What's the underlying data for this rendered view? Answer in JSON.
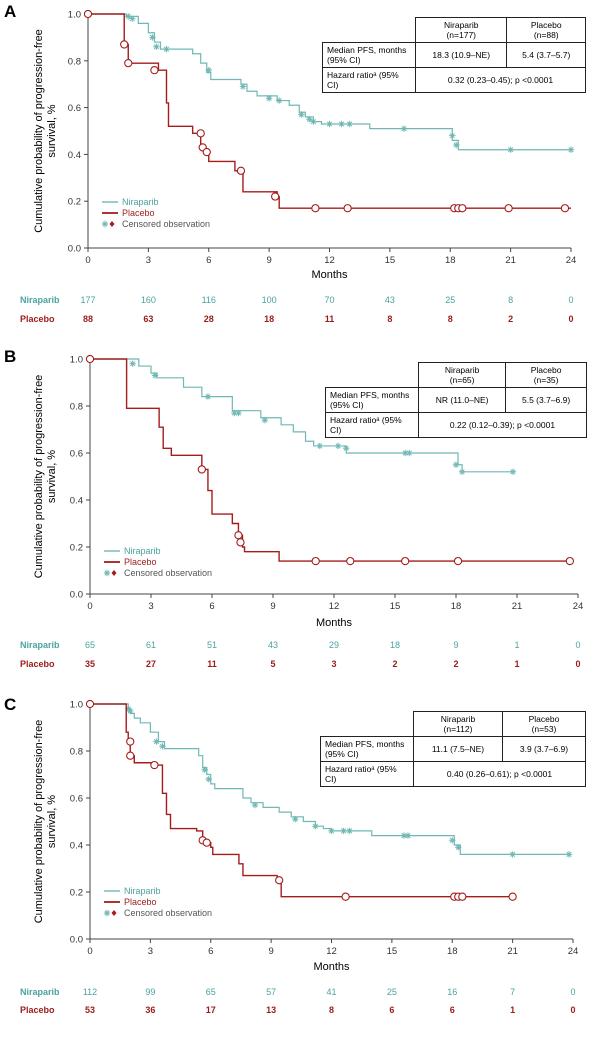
{
  "chart_data": [
    {
      "panel": "A",
      "type": "line",
      "ylabel": "Cumulative probability of progression-free survival, %",
      "xlabel": "Months",
      "xticks": [
        0,
        3,
        6,
        9,
        12,
        15,
        18,
        21,
        24
      ],
      "yticks": [
        "0.0",
        "0.2",
        "0.4",
        "0.6",
        "0.8",
        "1.0"
      ],
      "xlim": [
        0,
        24
      ],
      "ylim": [
        0,
        1
      ],
      "legend": {
        "niraparib": "Niraparib",
        "placebo": "Placebo",
        "censored": "Censored observation"
      },
      "legend_placement": "bottom-left",
      "table": {
        "col1": "Niraparib",
        "col1_n": "(n=177)",
        "col2": "Placebo",
        "col2_n": "(n=88)",
        "row1_label": "Median PFS, months (95% CI)",
        "row1_v1": "18.3 (10.9–NE)",
        "row1_v2": "5.4 (3.7–5.7)",
        "row2_label": "Hazard ratioᵃ (95% CI)",
        "row2_value": "0.32 (0.23–0.45); p <0.0001"
      },
      "series": [
        {
          "name": "Niraparib",
          "steps": [
            [
              0,
              1.0
            ],
            [
              1.9,
              0.99
            ],
            [
              2.5,
              0.96
            ],
            [
              3.0,
              0.92
            ],
            [
              3.3,
              0.88
            ],
            [
              3.6,
              0.85
            ],
            [
              5.2,
              0.83
            ],
            [
              5.6,
              0.79
            ],
            [
              5.9,
              0.75
            ],
            [
              6.1,
              0.72
            ],
            [
              7.6,
              0.7
            ],
            [
              7.9,
              0.67
            ],
            [
              8.4,
              0.65
            ],
            [
              9.4,
              0.63
            ],
            [
              10.0,
              0.61
            ],
            [
              10.5,
              0.58
            ],
            [
              10.8,
              0.56
            ],
            [
              11.2,
              0.54
            ],
            [
              11.6,
              0.53
            ],
            [
              14.0,
              0.51
            ],
            [
              18.1,
              0.46
            ],
            [
              18.4,
              0.42
            ]
          ],
          "end": 24,
          "censored": [
            [
              2.0,
              0.99
            ],
            [
              2.2,
              0.98
            ],
            [
              3.2,
              0.9
            ],
            [
              3.4,
              0.86
            ],
            [
              3.9,
              0.85
            ],
            [
              6.0,
              0.76
            ],
            [
              7.7,
              0.69
            ],
            [
              9.0,
              0.64
            ],
            [
              9.5,
              0.63
            ],
            [
              10.6,
              0.57
            ],
            [
              11.0,
              0.55
            ],
            [
              11.2,
              0.54
            ],
            [
              12.0,
              0.53
            ],
            [
              12.6,
              0.53
            ],
            [
              13.0,
              0.53
            ],
            [
              15.7,
              0.51
            ],
            [
              18.1,
              0.48
            ],
            [
              18.3,
              0.44
            ],
            [
              21.0,
              0.42
            ],
            [
              24.0,
              0.42
            ]
          ]
        },
        {
          "name": "Placebo",
          "steps": [
            [
              0,
              1.0
            ],
            [
              1.8,
              0.87
            ],
            [
              2.0,
              0.79
            ],
            [
              3.5,
              0.76
            ],
            [
              3.9,
              0.62
            ],
            [
              4.0,
              0.52
            ],
            [
              5.2,
              0.49
            ],
            [
              5.6,
              0.44
            ],
            [
              5.8,
              0.42
            ],
            [
              5.9,
              0.4
            ],
            [
              6.0,
              0.37
            ],
            [
              7.3,
              0.33
            ],
            [
              7.7,
              0.24
            ],
            [
              9.4,
              0.22
            ],
            [
              9.5,
              0.17
            ]
          ],
          "end": 24,
          "censored": [
            [
              0,
              1.0
            ],
            [
              1.8,
              0.87
            ],
            [
              2.0,
              0.79
            ],
            [
              3.3,
              0.76
            ],
            [
              5.6,
              0.49
            ],
            [
              5.7,
              0.43
            ],
            [
              5.9,
              0.41
            ],
            [
              7.6,
              0.33
            ],
            [
              9.3,
              0.22
            ],
            [
              11.3,
              0.17
            ],
            [
              12.9,
              0.17
            ],
            [
              18.2,
              0.17
            ],
            [
              18.4,
              0.17
            ],
            [
              18.6,
              0.17
            ],
            [
              20.9,
              0.17
            ],
            [
              23.7,
              0.17
            ]
          ]
        }
      ],
      "at_risk": {
        "niraparib_label": "Niraparib",
        "placebo_label": "Placebo",
        "niraparib": [
          "177",
          "160",
          "116",
          "100",
          "70",
          "43",
          "25",
          "8",
          "0"
        ],
        "placebo": [
          "88",
          "63",
          "28",
          "18",
          "11",
          "8",
          "8",
          "2",
          "0"
        ]
      }
    },
    {
      "panel": "B",
      "type": "line",
      "ylabel": "Cumulative probability of progression-free survival, %",
      "xlabel": "Months",
      "xticks": [
        0,
        3,
        6,
        9,
        12,
        15,
        18,
        21,
        24
      ],
      "yticks": [
        "0.0",
        "0.2",
        "0.4",
        "0.6",
        "0.8",
        "1.0"
      ],
      "xlim": [
        0,
        24
      ],
      "ylim": [
        0,
        1
      ],
      "legend": {
        "niraparib": "Niraparib",
        "placebo": "Placebo",
        "censored": "Censored observation"
      },
      "legend_placement": "bottom-left",
      "table": {
        "col1": "Niraparib",
        "col1_n": "(n=65)",
        "col2": "Placebo",
        "col2_n": "(n=35)",
        "row1_label": "Median PFS, months (95% CI)",
        "row1_v1": "NR (11.0–NE)",
        "row1_v2": "5.5 (3.7–6.9)",
        "row2_label": "Hazard ratioᵃ (95% CI)",
        "row2_value": "0.22 (0.12–0.39); p <0.0001"
      },
      "series": [
        {
          "name": "Niraparib",
          "steps": [
            [
              0,
              1.0
            ],
            [
              2.4,
              0.97
            ],
            [
              3.0,
              0.94
            ],
            [
              3.3,
              0.92
            ],
            [
              4.6,
              0.88
            ],
            [
              5.5,
              0.84
            ],
            [
              7.0,
              0.78
            ],
            [
              8.4,
              0.75
            ],
            [
              9.4,
              0.72
            ],
            [
              10.0,
              0.69
            ],
            [
              10.6,
              0.65
            ],
            [
              11.0,
              0.63
            ],
            [
              12.6,
              0.6
            ],
            [
              18.1,
              0.55
            ],
            [
              18.3,
              0.52
            ]
          ],
          "end": 20.8,
          "censored": [
            [
              2.1,
              0.98
            ],
            [
              3.2,
              0.93
            ],
            [
              5.8,
              0.84
            ],
            [
              7.1,
              0.77
            ],
            [
              7.3,
              0.77
            ],
            [
              8.6,
              0.74
            ],
            [
              11.3,
              0.63
            ],
            [
              12.2,
              0.63
            ],
            [
              12.6,
              0.62
            ],
            [
              15.5,
              0.6
            ],
            [
              15.7,
              0.6
            ],
            [
              18.0,
              0.55
            ],
            [
              18.3,
              0.52
            ],
            [
              20.8,
              0.52
            ]
          ]
        },
        {
          "name": "Placebo",
          "steps": [
            [
              0,
              1.0
            ],
            [
              1.8,
              0.79
            ],
            [
              3.4,
              0.71
            ],
            [
              3.6,
              0.62
            ],
            [
              4.0,
              0.59
            ],
            [
              5.5,
              0.53
            ],
            [
              5.8,
              0.44
            ],
            [
              6.0,
              0.34
            ],
            [
              7.0,
              0.3
            ],
            [
              7.3,
              0.25
            ],
            [
              7.5,
              0.2
            ],
            [
              7.6,
              0.18
            ],
            [
              9.3,
              0.14
            ]
          ],
          "end": 23.6,
          "censored": [
            [
              0,
              1.0
            ],
            [
              5.5,
              0.53
            ],
            [
              7.3,
              0.25
            ],
            [
              7.4,
              0.22
            ],
            [
              11.1,
              0.14
            ],
            [
              12.8,
              0.14
            ],
            [
              15.5,
              0.14
            ],
            [
              18.1,
              0.14
            ],
            [
              23.6,
              0.14
            ]
          ]
        }
      ],
      "at_risk": {
        "niraparib_label": "Niraparib",
        "placebo_label": "Placebo",
        "niraparib": [
          "65",
          "61",
          "51",
          "43",
          "29",
          "18",
          "9",
          "1",
          "0"
        ],
        "placebo": [
          "35",
          "27",
          "11",
          "5",
          "3",
          "2",
          "2",
          "1",
          "0"
        ]
      }
    },
    {
      "panel": "C",
      "type": "line",
      "ylabel": "Cumulative probability of progression-free survival, %",
      "xlabel": "Months",
      "xticks": [
        0,
        3,
        6,
        9,
        12,
        15,
        18,
        21,
        24
      ],
      "yticks": [
        "0.0",
        "0.2",
        "0.4",
        "0.6",
        "0.8",
        "1.0"
      ],
      "xlim": [
        0,
        24
      ],
      "ylim": [
        0,
        1
      ],
      "legend": {
        "niraparib": "Niraparib",
        "placebo": "Placebo",
        "censored": "Censored observation"
      },
      "legend_placement": "bottom-left",
      "table": {
        "col1": "Niraparib",
        "col1_n": "(n=112)",
        "col2": "Placebo",
        "col2_n": "(n=53)",
        "row1_label": "Median PFS, months (95% CI)",
        "row1_v1": "11.1 (7.5–NE)",
        "row1_v2": "3.9 (3.7–6.9)",
        "row2_label": "Hazard ratioᵃ (95% CI)",
        "row2_value": "0.40 (0.26–0.61); p <0.0001"
      },
      "series": [
        {
          "name": "Niraparib",
          "steps": [
            [
              0,
              1.0
            ],
            [
              1.9,
              0.98
            ],
            [
              2.0,
              0.96
            ],
            [
              2.2,
              0.94
            ],
            [
              2.5,
              0.92
            ],
            [
              3.0,
              0.88
            ],
            [
              3.4,
              0.84
            ],
            [
              3.7,
              0.81
            ],
            [
              5.4,
              0.78
            ],
            [
              5.6,
              0.73
            ],
            [
              5.8,
              0.7
            ],
            [
              6.0,
              0.66
            ],
            [
              6.2,
              0.64
            ],
            [
              7.6,
              0.6
            ],
            [
              8.0,
              0.58
            ],
            [
              8.6,
              0.56
            ],
            [
              9.4,
              0.54
            ],
            [
              10.0,
              0.52
            ],
            [
              10.6,
              0.5
            ],
            [
              11.2,
              0.48
            ],
            [
              11.6,
              0.47
            ],
            [
              12.0,
              0.46
            ],
            [
              14.0,
              0.44
            ],
            [
              18.1,
              0.4
            ],
            [
              18.4,
              0.36
            ]
          ],
          "end": 23.8,
          "censored": [
            [
              1.9,
              0.98
            ],
            [
              2.0,
              0.97
            ],
            [
              3.3,
              0.84
            ],
            [
              3.6,
              0.82
            ],
            [
              5.7,
              0.72
            ],
            [
              5.9,
              0.68
            ],
            [
              8.2,
              0.57
            ],
            [
              10.2,
              0.51
            ],
            [
              11.2,
              0.48
            ],
            [
              12.0,
              0.46
            ],
            [
              12.6,
              0.46
            ],
            [
              12.9,
              0.46
            ],
            [
              15.6,
              0.44
            ],
            [
              15.8,
              0.44
            ],
            [
              18.0,
              0.42
            ],
            [
              18.3,
              0.39
            ],
            [
              21.0,
              0.36
            ],
            [
              23.8,
              0.36
            ]
          ]
        },
        {
          "name": "Placebo",
          "steps": [
            [
              0,
              1.0
            ],
            [
              1.8,
              0.88
            ],
            [
              1.9,
              0.84
            ],
            [
              2.0,
              0.78
            ],
            [
              2.2,
              0.75
            ],
            [
              3.3,
              0.74
            ],
            [
              3.6,
              0.62
            ],
            [
              3.8,
              0.53
            ],
            [
              4.0,
              0.47
            ],
            [
              5.3,
              0.46
            ],
            [
              5.6,
              0.41
            ],
            [
              6.0,
              0.39
            ],
            [
              6.1,
              0.36
            ],
            [
              7.4,
              0.32
            ],
            [
              7.6,
              0.27
            ],
            [
              9.3,
              0.25
            ],
            [
              9.5,
              0.18
            ]
          ],
          "end": 21.0,
          "censored": [
            [
              0,
              1.0
            ],
            [
              2.0,
              0.84
            ],
            [
              2.0,
              0.78
            ],
            [
              3.2,
              0.74
            ],
            [
              5.6,
              0.42
            ],
            [
              5.8,
              0.41
            ],
            [
              9.4,
              0.25
            ],
            [
              12.7,
              0.18
            ],
            [
              18.1,
              0.18
            ],
            [
              18.3,
              0.18
            ],
            [
              18.5,
              0.18
            ],
            [
              21.0,
              0.18
            ]
          ]
        }
      ],
      "at_risk": {
        "niraparib_label": "Niraparib",
        "placebo_label": "Placebo",
        "niraparib": [
          "112",
          "99",
          "65",
          "57",
          "41",
          "25",
          "16",
          "7",
          "0"
        ],
        "placebo": [
          "53",
          "36",
          "17",
          "13",
          "8",
          "6",
          "6",
          "1",
          "0"
        ]
      }
    }
  ],
  "colors": {
    "niraparib": "#6fb8b4",
    "placebo": "#a61c1c",
    "axis": "#444444"
  }
}
